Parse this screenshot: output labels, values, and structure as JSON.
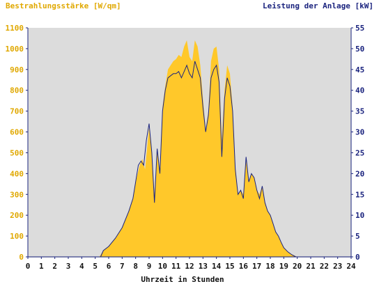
{
  "chart_data": {
    "type": "area",
    "left_axis_title": "Bestrahlungsstärke [W/qm]",
    "right_axis_title": "Leistung der Anlage [kW]",
    "xlabel": "Uhrzeit in Stunden",
    "x_ticks": [
      "0",
      "1",
      "2",
      "3",
      "4",
      "5",
      "6",
      "7",
      "8",
      "9",
      "10",
      "11",
      "12",
      "13",
      "14",
      "15",
      "16",
      "17",
      "18",
      "19",
      "20",
      "21",
      "22",
      "23",
      "24"
    ],
    "y_left_ticks": [
      "0",
      "100",
      "200",
      "300",
      "400",
      "500",
      "600",
      "700",
      "800",
      "900",
      "1000",
      "1100"
    ],
    "y_right_ticks": [
      "0",
      "5",
      "10",
      "15",
      "20",
      "25",
      "30",
      "35",
      "40",
      "45",
      "50",
      "55"
    ],
    "xlim": [
      0,
      24
    ],
    "ylim_left": [
      0,
      1100
    ],
    "ylim_right": [
      0,
      55
    ],
    "grid": false,
    "colors": {
      "irradiance": "#ffc82a",
      "power": "#1a237e",
      "plot_bg": "#dcdcdc",
      "left_axis_text": "#e0a800",
      "right_axis_text": "#1a237e"
    },
    "series": [
      {
        "name": "Bestrahlungsstärke [W/qm]",
        "axis": "left",
        "x": [
          0,
          5.3,
          5.6,
          6.0,
          6.5,
          7.0,
          7.5,
          7.8,
          8.0,
          8.3,
          8.5,
          8.7,
          8.9,
          9.0,
          9.2,
          9.4,
          9.6,
          9.8,
          10.0,
          10.2,
          10.4,
          10.6,
          10.8,
          11.0,
          11.2,
          11.4,
          11.6,
          11.8,
          12.0,
          12.2,
          12.4,
          12.6,
          12.8,
          13.0,
          13.2,
          13.4,
          13.6,
          13.8,
          14.0,
          14.2,
          14.4,
          14.6,
          14.8,
          15.0,
          15.2,
          15.4,
          15.6,
          15.8,
          16.0,
          16.2,
          16.4,
          16.6,
          16.8,
          17.0,
          17.2,
          17.4,
          17.6,
          17.8,
          18.0,
          18.2,
          18.4,
          18.6,
          18.8,
          19.0,
          19.3,
          19.6,
          20.0,
          24
        ],
        "values": [
          0,
          0,
          30,
          50,
          90,
          140,
          220,
          280,
          360,
          440,
          470,
          420,
          560,
          620,
          500,
          300,
          520,
          420,
          720,
          820,
          900,
          920,
          940,
          950,
          970,
          960,
          1010,
          1040,
          960,
          940,
          1040,
          1010,
          920,
          760,
          610,
          700,
          940,
          1000,
          1010,
          900,
          560,
          800,
          920,
          880,
          720,
          440,
          300,
          320,
          300,
          460,
          360,
          400,
          380,
          320,
          300,
          340,
          260,
          220,
          200,
          160,
          120,
          100,
          70,
          45,
          25,
          12,
          0,
          0
        ]
      },
      {
        "name": "Leistung der Anlage [kW]",
        "axis": "right",
        "x": [
          0,
          5.4,
          5.6,
          6.0,
          6.5,
          7.0,
          7.5,
          7.8,
          8.0,
          8.2,
          8.4,
          8.6,
          8.8,
          9.0,
          9.2,
          9.4,
          9.6,
          9.8,
          10.0,
          10.2,
          10.4,
          10.6,
          10.8,
          11.0,
          11.2,
          11.4,
          11.6,
          11.8,
          12.0,
          12.2,
          12.4,
          12.6,
          12.8,
          13.0,
          13.2,
          13.4,
          13.6,
          13.8,
          14.0,
          14.2,
          14.4,
          14.6,
          14.8,
          15.0,
          15.2,
          15.4,
          15.6,
          15.8,
          16.0,
          16.2,
          16.4,
          16.6,
          16.8,
          17.0,
          17.2,
          17.4,
          17.6,
          17.8,
          18.0,
          18.2,
          18.4,
          18.6,
          18.8,
          19.0,
          19.3,
          19.6,
          19.9,
          24
        ],
        "values": [
          0,
          0,
          1.5,
          2.5,
          4.5,
          7,
          11,
          14,
          18,
          22,
          23,
          22,
          28,
          32,
          25,
          13,
          26,
          20,
          35,
          40,
          43,
          43.5,
          44,
          44,
          44.5,
          43,
          44.5,
          46,
          44,
          43,
          47,
          45,
          43,
          36,
          30,
          34,
          43,
          45,
          46,
          42,
          24,
          38,
          43,
          41,
          35,
          21,
          15,
          16,
          14,
          24,
          18,
          20,
          19,
          16,
          14,
          17,
          13,
          11,
          10,
          8,
          6,
          5,
          3.5,
          2.2,
          1.2,
          0.5,
          0,
          0
        ]
      }
    ]
  }
}
